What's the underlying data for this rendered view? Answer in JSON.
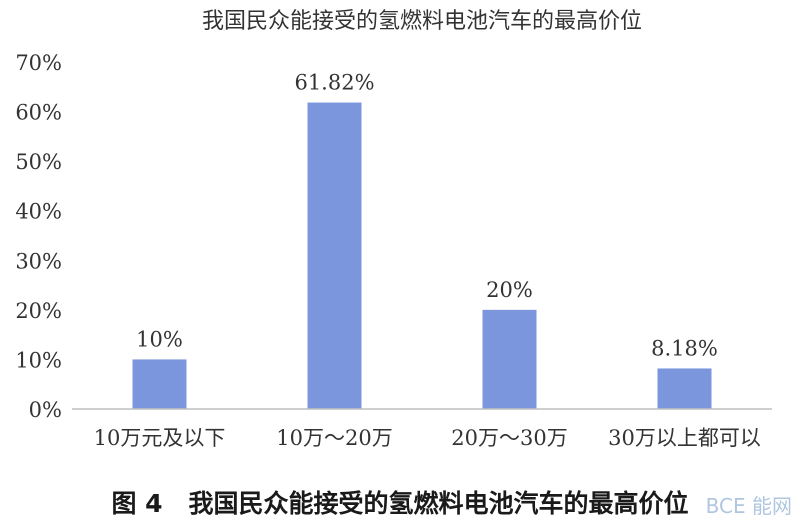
{
  "chart_data": {
    "type": "bar",
    "title": "我国民众能接受的氢燃料电池汽车的最高价位",
    "categories": [
      "10万元及以下",
      "10万～20万",
      "20万～30万",
      "30万以上都可以"
    ],
    "values": [
      10,
      61.82,
      20,
      8.18
    ],
    "data_labels": [
      "10%",
      "61.82%",
      "20%",
      "8.18%"
    ],
    "yticks": [
      "0%",
      "10%",
      "20%",
      "30%",
      "40%",
      "50%",
      "60%",
      "70%"
    ],
    "ylim": [
      0,
      70
    ],
    "grid": false,
    "legend": "none",
    "bar_color": "#7b96dc"
  },
  "caption": {
    "figure_number": "图 4",
    "text": "我国民众能接受的氢燃料电池汽车的最高价位"
  },
  "watermark": "BCE 能网"
}
